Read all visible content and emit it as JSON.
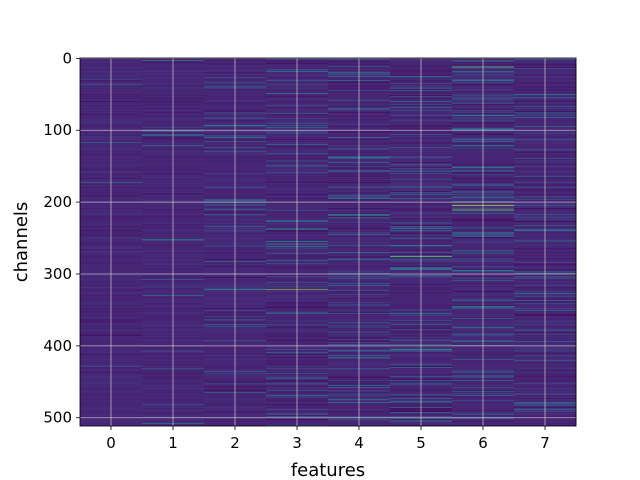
{
  "chart_data": {
    "type": "heatmap",
    "title": "",
    "xlabel": "features",
    "ylabel": "channels",
    "x_categories": [
      0,
      1,
      2,
      3,
      4,
      5,
      6,
      7
    ],
    "x_tick_labels": [
      "0",
      "1",
      "2",
      "3",
      "4",
      "5",
      "6",
      "7"
    ],
    "y_range": [
      0,
      511
    ],
    "y_inverted": true,
    "y_ticks": [
      0,
      100,
      200,
      300,
      400,
      500
    ],
    "y_tick_labels": [
      "0",
      "100",
      "200",
      "300",
      "400",
      "500"
    ],
    "grid": true,
    "colormap": "viridis",
    "colors": {
      "background_low": "#46337e",
      "low": "#482878",
      "mid": "#2a788e",
      "high": "#22a884",
      "peak": "#fde725",
      "grid": "#d8d8d8"
    },
    "highlights": [
      {
        "feature": 6,
        "channel": 12,
        "level": 0.85
      },
      {
        "feature": 6,
        "channel": 205,
        "level": 0.95
      },
      {
        "feature": 6,
        "channel": 211,
        "level": 0.9
      },
      {
        "feature": 6,
        "channel": 186,
        "level": 0.6
      },
      {
        "feature": 6,
        "channel": 268,
        "level": 0.65
      },
      {
        "feature": 6,
        "channel": 345,
        "level": 0.7
      },
      {
        "feature": 6,
        "channel": 80,
        "level": 0.55
      },
      {
        "feature": 6,
        "channel": 30,
        "level": 0.55
      },
      {
        "feature": 3,
        "channel": 322,
        "level": 0.9
      },
      {
        "feature": 3,
        "channel": 18,
        "level": 0.6
      },
      {
        "feature": 3,
        "channel": 255,
        "level": 0.6
      },
      {
        "feature": 3,
        "channel": 262,
        "level": 0.55
      },
      {
        "feature": 3,
        "channel": 495,
        "level": 0.5
      },
      {
        "feature": 4,
        "channel": 218,
        "level": 0.7
      },
      {
        "feature": 4,
        "channel": 222,
        "level": 0.6
      },
      {
        "feature": 4,
        "channel": 20,
        "level": 0.5
      },
      {
        "feature": 4,
        "channel": 475,
        "level": 0.6
      },
      {
        "feature": 4,
        "channel": 355,
        "level": 0.45
      },
      {
        "feature": 4,
        "channel": 145,
        "level": 0.45
      },
      {
        "feature": 5,
        "channel": 276,
        "level": 0.85
      },
      {
        "feature": 5,
        "channel": 405,
        "level": 0.75
      },
      {
        "feature": 5,
        "channel": 493,
        "level": 0.6
      },
      {
        "feature": 5,
        "channel": 260,
        "level": 0.55
      },
      {
        "feature": 5,
        "channel": 60,
        "level": 0.5
      },
      {
        "feature": 5,
        "channel": 157,
        "level": 0.45
      },
      {
        "feature": 7,
        "channel": 50,
        "level": 0.6
      },
      {
        "feature": 7,
        "channel": 82,
        "level": 0.55
      },
      {
        "feature": 7,
        "channel": 240,
        "level": 0.5
      },
      {
        "feature": 7,
        "channel": 378,
        "level": 0.5
      },
      {
        "feature": 2,
        "channel": 204,
        "level": 0.5
      },
      {
        "feature": 2,
        "channel": 322,
        "level": 0.55
      },
      {
        "feature": 2,
        "channel": 465,
        "level": 0.45
      },
      {
        "feature": 1,
        "channel": 508,
        "level": 0.5
      }
    ],
    "feature_intensity": [
      0.03,
      0.05,
      0.14,
      0.22,
      0.26,
      0.3,
      0.32,
      0.24
    ]
  }
}
